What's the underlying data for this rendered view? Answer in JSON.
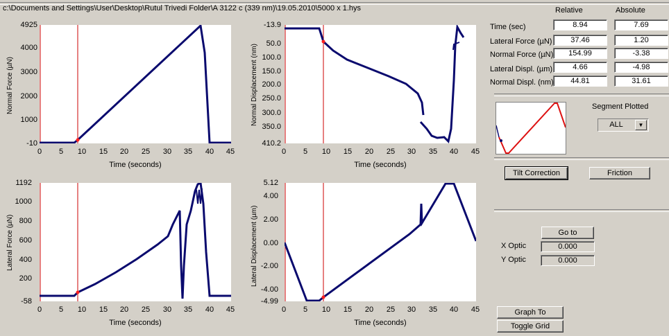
{
  "file_path": "c:\\Documents and Settings\\User\\Desktop\\Rutul Trivedi Folder\\A 3122 c (339 nm)\\19.05.2010\\5000 x 1.hys",
  "readouts": {
    "header_relative": "Relative",
    "header_absolute": "Absolute",
    "rows": [
      {
        "label": "Time (sec)",
        "relative": "8.94",
        "absolute": "7.69"
      },
      {
        "label": "Lateral Force (µN)",
        "relative": "37.46",
        "absolute": "1.20"
      },
      {
        "label": "Normal Force (µN)",
        "relative": "154.99",
        "absolute": "-3.38"
      },
      {
        "label": "Lateral Displ. (µm)",
        "relative": "4.66",
        "absolute": "-4.98"
      },
      {
        "label": "Normal Displ. (nm)",
        "relative": "44.81",
        "absolute": "31.61"
      }
    ]
  },
  "segment": {
    "label": "Segment Plotted",
    "value": "ALL"
  },
  "buttons": {
    "tilt_correction": "Tilt Correction",
    "friction": "Friction",
    "go_to": "Go to",
    "graph_to_clipboard": "Graph To Clipboard",
    "toggle_grid": "Toggle Grid"
  },
  "optic": {
    "x_label": "X Optic",
    "x_value": "0.000",
    "y_label": "Y Optic",
    "y_value": "0.000"
  },
  "colors": {
    "trace": "#0a0a6e",
    "cursor": "#cc0000",
    "marker": "#ff2020"
  },
  "plots": {
    "normal_force": {
      "ylabel": "Normal Force (µN)",
      "xlabel": "Time (seconds)",
      "yticks": [
        "4925",
        "4000",
        "3000",
        "2000",
        "1000",
        "-10"
      ],
      "xticks": [
        "0",
        "5",
        "10",
        "15",
        "20",
        "25",
        "30",
        "35",
        "40",
        "45"
      ]
    },
    "normal_displacement": {
      "ylabel": "Normal Displacement (nm)",
      "xlabel": "Time (seconds)",
      "yticks": [
        "-13.9",
        "50.0",
        "100.0",
        "150.0",
        "200.0",
        "250.0",
        "300.0",
        "350.0",
        "410.2"
      ],
      "xticks": [
        "0",
        "5",
        "10",
        "15",
        "20",
        "25",
        "30",
        "35",
        "40",
        "45"
      ]
    },
    "lateral_force": {
      "ylabel": "Lateral Force (µN)",
      "xlabel": "Time (seconds)",
      "yticks": [
        "1192",
        "1000",
        "800",
        "600",
        "400",
        "200",
        "-58"
      ],
      "xticks": [
        "0",
        "5",
        "10",
        "15",
        "20",
        "25",
        "30",
        "35",
        "40",
        "45"
      ]
    },
    "lateral_displacement": {
      "ylabel": "Lateral Displacement (µm)",
      "xlabel": "Time (seconds)",
      "yticks": [
        "5.12",
        "4.00",
        "2.00",
        "0.00",
        "-2.00",
        "-4.00",
        "-4.99"
      ],
      "xticks": [
        "0",
        "5",
        "10",
        "15",
        "20",
        "25",
        "30",
        "35",
        "40",
        "45"
      ]
    }
  }
}
